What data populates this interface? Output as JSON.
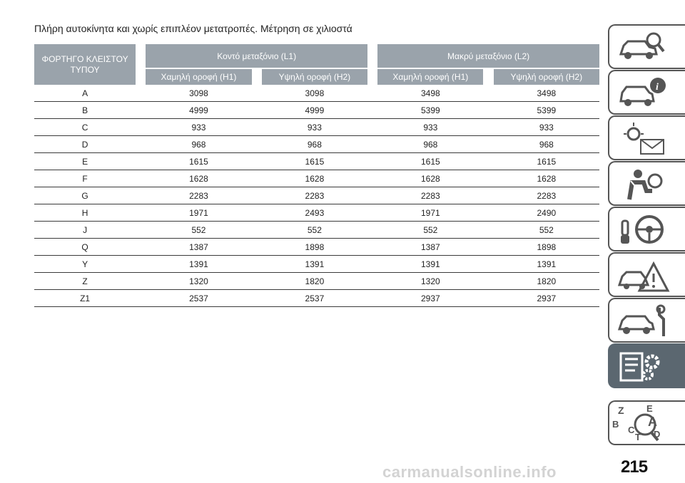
{
  "heading": "Πλήρη αυτοκίνητα και χωρίς επιπλέον μετατροπές. Μέτρηση σε χιλιοστά",
  "table": {
    "corner_header": "ΦΟΡΤΗΓΟ ΚΛΕΙΣΤΟΥ ΤΥΠΟΥ",
    "group_headers": [
      "Κοντό μεταξόνιο (L1)",
      "Μακρύ μεταξόνιο (L2)"
    ],
    "sub_headers": [
      "Χαμηλή οροφή (H1)",
      "Υψηλή οροφή (H2)",
      "Χαμηλή οροφή (H1)",
      "Υψηλή οροφή (H2)"
    ],
    "rows": [
      {
        "label": "A",
        "values": [
          "3098",
          "3098",
          "3498",
          "3498"
        ]
      },
      {
        "label": "B",
        "values": [
          "4999",
          "4999",
          "5399",
          "5399"
        ]
      },
      {
        "label": "C",
        "values": [
          "933",
          "933",
          "933",
          "933"
        ]
      },
      {
        "label": "D",
        "values": [
          "968",
          "968",
          "968",
          "968"
        ]
      },
      {
        "label": "E",
        "values": [
          "1615",
          "1615",
          "1615",
          "1615"
        ]
      },
      {
        "label": "F",
        "values": [
          "1628",
          "1628",
          "1628",
          "1628"
        ]
      },
      {
        "label": "G",
        "values": [
          "2283",
          "2283",
          "2283",
          "2283"
        ]
      },
      {
        "label": "H",
        "values": [
          "1971",
          "2493",
          "1971",
          "2490"
        ]
      },
      {
        "label": "J",
        "values": [
          "552",
          "552",
          "552",
          "552"
        ]
      },
      {
        "label": "Q",
        "values": [
          "1387",
          "1898",
          "1387",
          "1898"
        ]
      },
      {
        "label": "Y",
        "values": [
          "1391",
          "1391",
          "1391",
          "1391"
        ]
      },
      {
        "label": "Z",
        "values": [
          "1320",
          "1820",
          "1320",
          "1820"
        ]
      },
      {
        "label": "Z1",
        "values": [
          "2537",
          "2537",
          "2937",
          "2937"
        ]
      }
    ]
  },
  "sidebar": {
    "tabs": [
      {
        "icon": "car-search-icon",
        "active": false
      },
      {
        "icon": "car-info-icon",
        "active": false
      },
      {
        "icon": "warning-lights-mail-icon",
        "active": false
      },
      {
        "icon": "seatbelt-airbag-icon",
        "active": false
      },
      {
        "icon": "key-steering-wheel-icon",
        "active": false
      },
      {
        "icon": "car-accident-warning-icon",
        "active": false
      },
      {
        "icon": "car-maintenance-icon",
        "active": false
      },
      {
        "icon": "technical-data-icon",
        "active": true
      },
      {
        "icon": "alphabetical-index-icon",
        "active": false
      }
    ],
    "index_letters": [
      "Z",
      "E",
      "B",
      "A",
      "C",
      "T",
      "D"
    ]
  },
  "page_number": "215",
  "watermark": "carmanualsonline.info",
  "colors": {
    "header_bg": "#9aa3ab",
    "active_tab": "#5b6770",
    "rule": "#3a3a3a"
  }
}
